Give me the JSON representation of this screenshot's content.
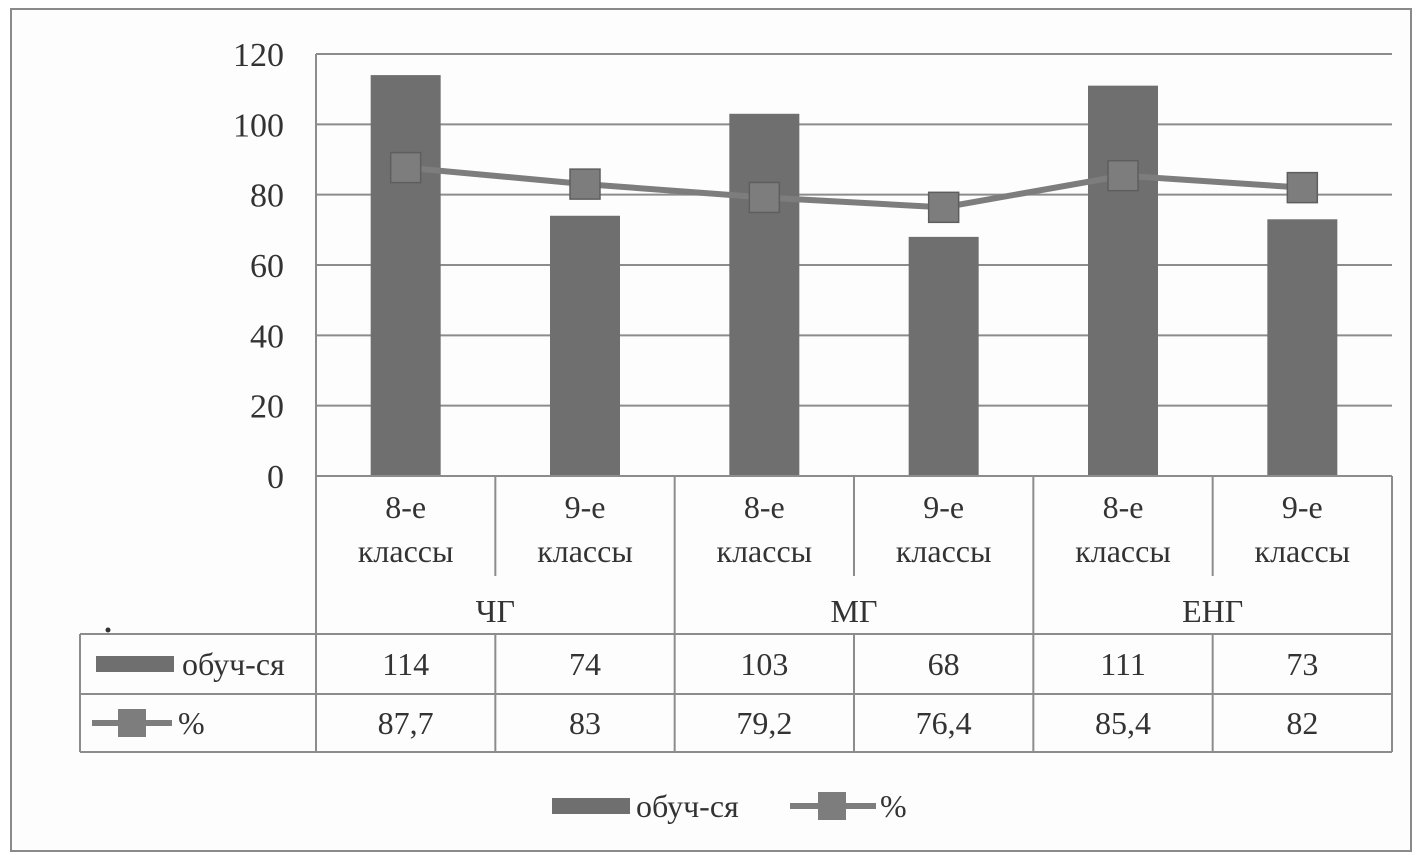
{
  "chart_data": {
    "type": "bar",
    "groups": [
      {
        "label": "ЧГ",
        "categories": [
          "8-е классы",
          "9-е классы"
        ]
      },
      {
        "label": "МГ",
        "categories": [
          "8-е классы",
          "9-е классы"
        ]
      },
      {
        "label": "ЕНГ",
        "categories": [
          "8-е классы",
          "9-е классы"
        ]
      }
    ],
    "category_lines": [
      [
        "8-е",
        "классы"
      ],
      [
        "9-е",
        "классы"
      ],
      [
        "8-е",
        "классы"
      ],
      [
        "9-е",
        "классы"
      ],
      [
        "8-е",
        "классы"
      ],
      [
        "9-е",
        "классы"
      ]
    ],
    "series": [
      {
        "name": "обуч-ся",
        "type": "bar",
        "values": [
          114,
          74,
          103,
          68,
          111,
          73
        ],
        "labels": [
          "114",
          "74",
          "103",
          "68",
          "111",
          "73"
        ],
        "color": "#6f6f6f"
      },
      {
        "name": "%",
        "type": "line",
        "marker": "square",
        "values": [
          87.7,
          83,
          79.2,
          76.4,
          85.4,
          82
        ],
        "labels": [
          "87,7",
          "83",
          "79,2",
          "76,4",
          "85,4",
          "82"
        ],
        "color": "#7d7d7d"
      }
    ],
    "yticks": [
      "0",
      "20",
      "40",
      "60",
      "80",
      "100",
      "120"
    ],
    "ylim": [
      0,
      120
    ],
    "grid": true,
    "legend_position": "bottom",
    "data_table": true
  }
}
